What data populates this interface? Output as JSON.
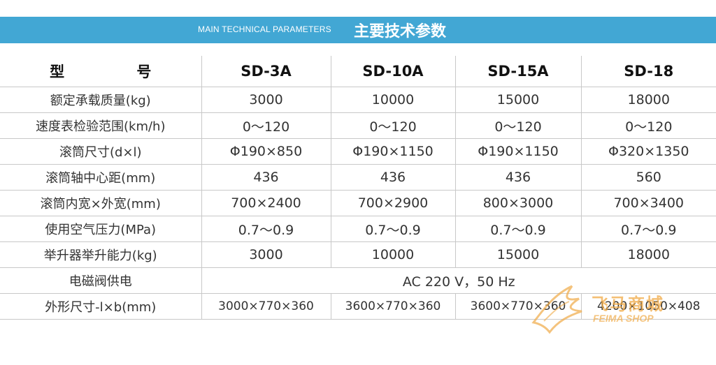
{
  "banner": {
    "title_en": "MAIN TECHNICAL PARAMETERS",
    "title_zh": "主要技术参数",
    "color": "#42a7d4"
  },
  "table": {
    "header": {
      "label": "型 号",
      "models": [
        "SD-3A",
        "SD-10A",
        "SD-15A",
        "SD-18"
      ]
    },
    "rows": [
      {
        "label": "额定承载质量(kg)",
        "values": [
          "3000",
          "10000",
          "15000",
          "18000"
        ]
      },
      {
        "label": "速度表检验范围(km/h)",
        "values": [
          "0～120",
          "0～120",
          "0～120",
          "0～120"
        ]
      },
      {
        "label": "滚筒尺寸(d×l)",
        "values": [
          "Φ190×850",
          "Φ190×1150",
          "Φ190×1150",
          "Φ320×1350"
        ]
      },
      {
        "label": "滚筒轴中心距(mm)",
        "values": [
          "436",
          "436",
          "436",
          "560"
        ]
      },
      {
        "label": "滚筒内宽×外宽(mm)",
        "values": [
          "700×2400",
          "700×2900",
          "800×3000",
          "700×3400"
        ]
      },
      {
        "label": "使用空气压力(MPa)",
        "values": [
          "0.7～0.9",
          "0.7～0.9",
          "0.7～0.9",
          "0.7～0.9"
        ]
      },
      {
        "label": "举升器举升能力(kg)",
        "values": [
          "3000",
          "10000",
          "15000",
          "18000"
        ]
      }
    ],
    "power_row": {
      "label": "电磁阀供电",
      "value": "AC 220 V，50 Hz"
    },
    "dims_row": {
      "label": "外形尺寸-l×b(mm)",
      "values": [
        "3000×770×360",
        "3600×770×360",
        "3600×770×360",
        "4200×1050×408"
      ]
    }
  },
  "watermark": {
    "text_zh": "飞马商城",
    "text_en": "FEIMA SHOP",
    "color": "#f0aa46"
  }
}
